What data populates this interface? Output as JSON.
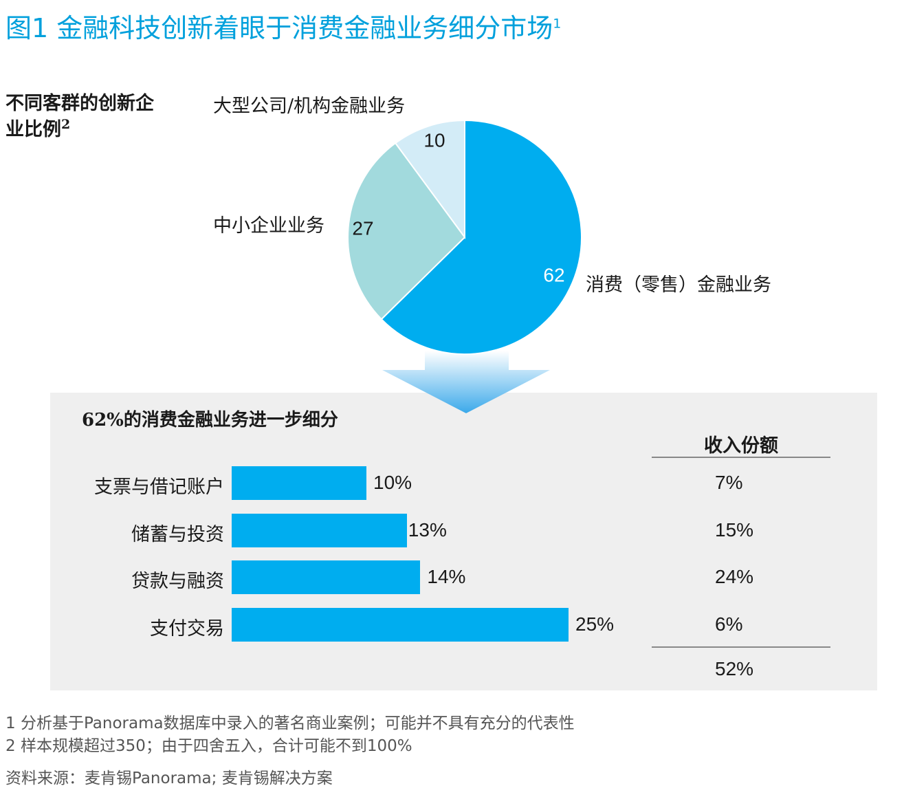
{
  "figure": {
    "title": "图1 金融科技创新着眼于消费金融业务细分市场",
    "title_sup": "1",
    "side_label": "不同客群的创新企业比例",
    "side_label_sup": "2"
  },
  "chart_data": [
    {
      "type": "pie",
      "slices": [
        {
          "label": "消费（零售）金融业务",
          "value": 62,
          "color": "#00adef"
        },
        {
          "label": "中小企业业务",
          "value": 27,
          "color": "#a2dadd"
        },
        {
          "label": "大型公司/机构金融业务",
          "value": 10,
          "color": "#d3ecf7"
        }
      ]
    },
    {
      "type": "bar",
      "title": "62%的消费金融业务进一步细分",
      "categories": [
        "支票与借记账户",
        "储蓄与投资",
        "贷款与融资",
        "支付交易"
      ],
      "values": [
        10,
        13,
        14,
        25
      ],
      "value_labels": [
        "10%",
        "13%",
        "14%",
        "25%"
      ],
      "color": "#00adef",
      "table": {
        "header": "收入份额",
        "values": [
          "7%",
          "15%",
          "24%",
          "6%"
        ],
        "total": "52%"
      }
    }
  ],
  "footnotes": [
    "1 分析基于Panorama数据库中录入的著名商业案例；可能并不具有充分的代表性",
    "2 样本规模超过350；由于四舍五入，合计可能不到100%"
  ],
  "source": "资料来源：麦肯锡Panorama; 麦肯锡解决方案"
}
